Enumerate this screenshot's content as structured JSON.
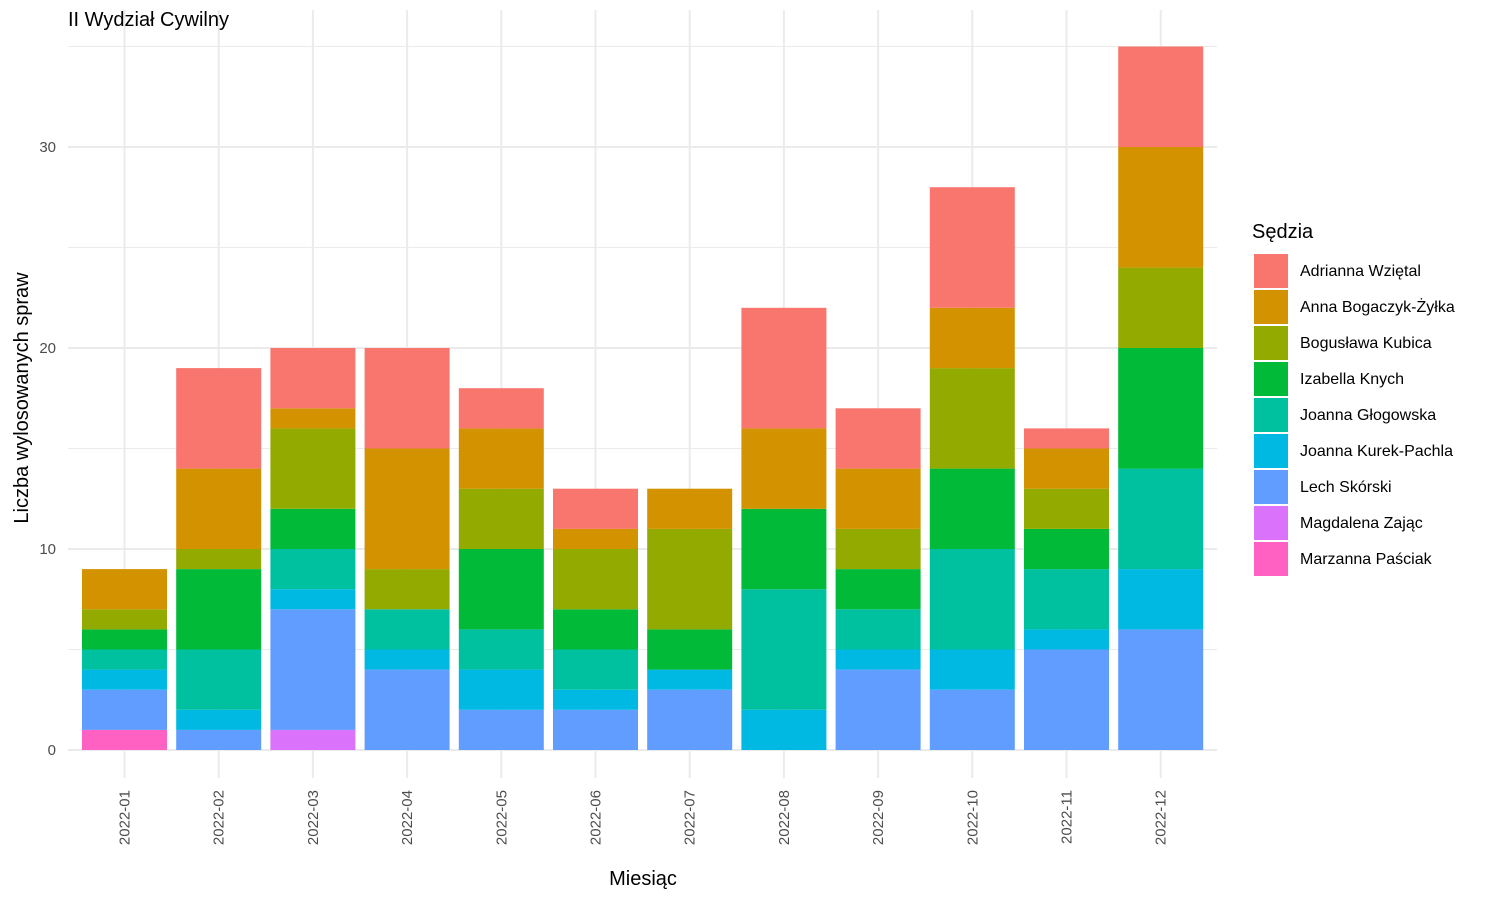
{
  "chart_data": {
    "type": "bar",
    "stacked": true,
    "title": "II Wydział Cywilny",
    "xlabel": "Miesiąc",
    "ylabel": "Liczba wylosowanych spraw",
    "ylim": [
      0,
      35
    ],
    "yticks": [
      0,
      10,
      20,
      30
    ],
    "grid": true,
    "legend_title": "Sędzia",
    "legend_position": "right",
    "categories": [
      "2022-01",
      "2022-02",
      "2022-03",
      "2022-04",
      "2022-05",
      "2022-06",
      "2022-07",
      "2022-08",
      "2022-09",
      "2022-10",
      "2022-11",
      "2022-12"
    ],
    "series": [
      {
        "name": "Adrianna Wziętal",
        "color": "#F8766D",
        "values": [
          0,
          5,
          3,
          5,
          2,
          2,
          0,
          6,
          3,
          6,
          1,
          5
        ]
      },
      {
        "name": "Anna Bogaczyk-Żyłka",
        "color": "#D39200",
        "values": [
          2,
          4,
          1,
          6,
          3,
          1,
          2,
          4,
          3,
          3,
          2,
          6
        ]
      },
      {
        "name": "Bogusława Kubica",
        "color": "#93AA00",
        "values": [
          1,
          1,
          4,
          2,
          3,
          3,
          5,
          0,
          2,
          5,
          2,
          4
        ]
      },
      {
        "name": "Izabella Knych",
        "color": "#00BA38",
        "values": [
          1,
          4,
          2,
          0,
          4,
          2,
          2,
          4,
          2,
          4,
          2,
          6
        ]
      },
      {
        "name": "Joanna Głogowska",
        "color": "#00C19F",
        "values": [
          1,
          3,
          2,
          2,
          2,
          2,
          0,
          6,
          2,
          5,
          3,
          5
        ]
      },
      {
        "name": "Joanna Kurek-Pachla",
        "color": "#00B9E3",
        "values": [
          1,
          1,
          1,
          1,
          2,
          1,
          1,
          2,
          1,
          2,
          1,
          3
        ]
      },
      {
        "name": "Lech Skórski",
        "color": "#619CFF",
        "values": [
          2,
          1,
          6,
          4,
          2,
          2,
          3,
          0,
          4,
          3,
          5,
          6
        ]
      },
      {
        "name": "Magdalena Zając",
        "color": "#DB72FB",
        "values": [
          0,
          0,
          1,
          0,
          0,
          0,
          0,
          0,
          0,
          0,
          0,
          0
        ]
      },
      {
        "name": "Marzanna Paściak",
        "color": "#FF61C3",
        "values": [
          1,
          0,
          0,
          0,
          0,
          0,
          0,
          0,
          0,
          0,
          0,
          0
        ]
      }
    ]
  }
}
